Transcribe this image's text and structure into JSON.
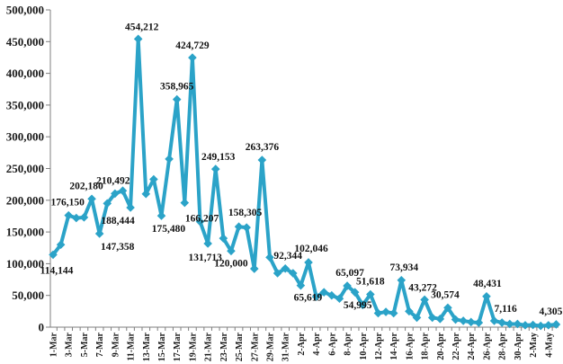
{
  "chart_data": {
    "type": "line",
    "title": "",
    "xlabel": "",
    "ylabel": "",
    "ylim": [
      0,
      500000
    ],
    "yticks": [
      0,
      50000,
      100000,
      150000,
      200000,
      250000,
      300000,
      350000,
      400000,
      450000,
      500000
    ],
    "ytick_labels": [
      "0",
      "50,000",
      "100,000",
      "150,000",
      "200,000",
      "250,000",
      "300,000",
      "350,000",
      "400,000",
      "450,000",
      "500,000"
    ],
    "grid": false,
    "legend": "none",
    "line_color": "#2ba3c8",
    "x": [
      "1-Mar",
      "2-Mar",
      "3-Mar",
      "4-Mar",
      "5-Mar",
      "6-Mar",
      "7-Mar",
      "8-Mar",
      "9-Mar",
      "10-Mar",
      "11-Mar",
      "12-Mar",
      "13-Mar",
      "14-Mar",
      "15-Mar",
      "16-Mar",
      "17-Mar",
      "18-Mar",
      "19-Mar",
      "20-Mar",
      "21-Mar",
      "22-Mar",
      "23-Mar",
      "24-Mar",
      "25-Mar",
      "26-Mar",
      "27-Mar",
      "28-Mar",
      "29-Mar",
      "30-Mar",
      "31-Mar",
      "1-Apr",
      "2-Apr",
      "3-Apr",
      "4-Apr",
      "5-Apr",
      "6-Apr",
      "7-Apr",
      "8-Apr",
      "9-Apr",
      "10-Apr",
      "11-Apr",
      "12-Apr",
      "13-Apr",
      "14-Apr",
      "15-Apr",
      "16-Apr",
      "17-Apr",
      "18-Apr",
      "19-Apr",
      "20-Apr",
      "21-Apr",
      "22-Apr",
      "23-Apr",
      "24-Apr",
      "25-Apr",
      "26-Apr",
      "27-Apr",
      "28-Apr",
      "29-Apr",
      "30-Apr",
      "1-May",
      "2-May",
      "3-May",
      "4-May",
      "5-May"
    ],
    "xtick_labels": [
      "1-Mar",
      "3-Mar",
      "5-Mar",
      "7-Mar",
      "9-Mar",
      "11-Mar",
      "13-Mar",
      "15-Mar",
      "17-Mar",
      "19-Mar",
      "21-Mar",
      "23-Mar",
      "25-Mar",
      "27-Mar",
      "29-Mar",
      "31-Mar",
      "2-Apr",
      "4-Apr",
      "6-Apr",
      "8-Apr",
      "10-Apr",
      "12-Apr",
      "14-Apr",
      "16-Apr",
      "18-Apr",
      "20-Apr",
      "22-Apr",
      "24-Apr",
      "26-Apr",
      "28-Apr",
      "30-Apr",
      "2-May",
      "4-May"
    ],
    "values": [
      114144,
      130000,
      176150,
      172000,
      173000,
      202180,
      147358,
      195000,
      210492,
      215000,
      188444,
      454212,
      210000,
      233000,
      175480,
      265000,
      358965,
      196000,
      424729,
      166207,
      131713,
      249153,
      140000,
      120000,
      158305,
      157000,
      92000,
      263376,
      110000,
      85000,
      92344,
      85000,
      65619,
      102046,
      48000,
      55000,
      50000,
      45000,
      65097,
      54995,
      35000,
      51618,
      22000,
      24000,
      22000,
      73934,
      25000,
      15000,
      43272,
      15000,
      13000,
      30574,
      12000,
      10000,
      8000,
      7000,
      48431,
      10000,
      7116,
      5000,
      5000,
      3000,
      3500,
      2000,
      3000,
      4305
    ],
    "data_labels": [
      {
        "index": 0,
        "text": "114,144"
      },
      {
        "index": 2,
        "text": "176,150"
      },
      {
        "index": 5,
        "text": "202,180"
      },
      {
        "index": 6,
        "text": "147,358"
      },
      {
        "index": 8,
        "text": "210,492"
      },
      {
        "index": 10,
        "text": "188,444"
      },
      {
        "index": 11,
        "text": "454,212"
      },
      {
        "index": 14,
        "text": "175,480"
      },
      {
        "index": 16,
        "text": "358,965"
      },
      {
        "index": 18,
        "text": "424,729"
      },
      {
        "index": 19,
        "text": "166,207"
      },
      {
        "index": 20,
        "text": "131,713"
      },
      {
        "index": 21,
        "text": "249,153"
      },
      {
        "index": 23,
        "text": "120,000"
      },
      {
        "index": 24,
        "text": "158,305"
      },
      {
        "index": 27,
        "text": "263,376"
      },
      {
        "index": 30,
        "text": "92,344"
      },
      {
        "index": 32,
        "text": "65,619"
      },
      {
        "index": 33,
        "text": "102,046"
      },
      {
        "index": 38,
        "text": "65,097"
      },
      {
        "index": 39,
        "text": "54,995"
      },
      {
        "index": 41,
        "text": "51,618"
      },
      {
        "index": 45,
        "text": "73,934"
      },
      {
        "index": 48,
        "text": "43,272"
      },
      {
        "index": 51,
        "text": "30,574"
      },
      {
        "index": 56,
        "text": "48,431"
      },
      {
        "index": 58,
        "text": "7,116"
      },
      {
        "index": 65,
        "text": "4,305"
      }
    ]
  }
}
